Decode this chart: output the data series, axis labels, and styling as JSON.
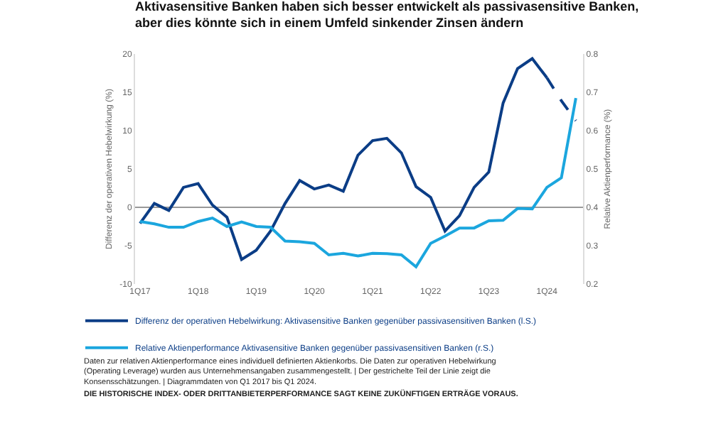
{
  "chart_data": {
    "type": "line",
    "title": "Aktivasensitive Banken haben sich besser entwickelt als passivasensitive Banken, aber dies könnte sich in einem Umfeld sinkender Zinsen ändern",
    "ylabel": "Differenz der operativen Hebelwirkung (%)",
    "y2label": "Relative Aktienperformance (%)",
    "series": [
      {
        "name": "Differenz der operativen Hebelwirkung: Aktivasensitive Banken gegenüber passivasensitiven Banken (l.S.)",
        "color": "#0b3d86",
        "line_style": "solid",
        "x": [
          "2017-01",
          "2017-04",
          "2017-07",
          "2017-10",
          "2018-01",
          "2018-04",
          "2018-07",
          "2018-10",
          "2019-01",
          "2019-04",
          "2019-07",
          "2019-10",
          "2020-01",
          "2020-04",
          "2020-07",
          "2020-10",
          "2021-01",
          "2021-04",
          "2021-07",
          "2021-10",
          "2022-01",
          "2022-04",
          "2022-07",
          "2022-10",
          "2023-01",
          "2023-04",
          "2023-07",
          "2023-10",
          "2024-01"
        ],
        "values": [
          -2.1,
          0.5,
          -0.4,
          2.6,
          3.1,
          0.3,
          -1.3,
          -6.8,
          -5.6,
          -3.1,
          0.5,
          3.5,
          2.4,
          2.9,
          2.1,
          6.8,
          8.7,
          9.0,
          7.1,
          2.7,
          1.3,
          -3.1,
          -1.1,
          2.6,
          4.6,
          13.6,
          18.1,
          19.4,
          16.9
        ]
      },
      {
        "color": "#0b3d86",
        "line_style": "dashed",
        "x": [
          "2024-01",
          "2024-04",
          "2024-07"
        ],
        "values": [
          16.9,
          13.9,
          11.3
        ]
      },
      {
        "name": "Relative Aktienperformance Aktivasensitive Banken gegenüber passivasensitiven Banken (r.S.)",
        "color": "#1ba6de",
        "line_style": "solid",
        "axis": "y2",
        "x": [
          "2017-01",
          "2017-04",
          "2017-07",
          "2017-10",
          "2018-01",
          "2018-04",
          "2018-07",
          "2018-10",
          "2019-01",
          "2019-04",
          "2019-07",
          "2019-10",
          "2020-01",
          "2020-04",
          "2020-07",
          "2020-10",
          "2021-01",
          "2021-04",
          "2021-07",
          "2021-10",
          "2022-01",
          "2022-04",
          "2022-07",
          "2022-10",
          "2023-01",
          "2023-04",
          "2023-07",
          "2023-10",
          "2024-01",
          "2024-04",
          "2024-07"
        ],
        "values": [
          0.363,
          0.357,
          0.348,
          0.348,
          0.363,
          0.372,
          0.35,
          0.362,
          0.35,
          0.348,
          0.312,
          0.31,
          0.306,
          0.276,
          0.28,
          0.273,
          0.28,
          0.279,
          0.276,
          0.245,
          0.306,
          0.325,
          0.346,
          0.346,
          0.365,
          0.366,
          0.397,
          0.396,
          0.452,
          0.477,
          0.685
        ]
      }
    ],
    "xlim": [
      "2016-12-01",
      "2024-08-15"
    ],
    "xticks": [
      {
        "value": "2017-01",
        "label": "1Q17"
      },
      {
        "value": "2018-01",
        "label": "1Q18"
      },
      {
        "value": "2019-01",
        "label": "1Q19"
      },
      {
        "value": "2020-01",
        "label": "1Q20"
      },
      {
        "value": "2021-01",
        "label": "1Q21"
      },
      {
        "value": "2022-01",
        "label": "1Q22"
      },
      {
        "value": "2023-01",
        "label": "1Q23"
      },
      {
        "value": "2024-01",
        "label": "1Q24"
      }
    ],
    "ylim": [
      -10,
      20
    ],
    "yticks": [
      -10,
      -5,
      0,
      5,
      10,
      15,
      20
    ],
    "y2lim": [
      0.2,
      0.8
    ],
    "y2ticks": [
      0.2,
      0.3,
      0.4,
      0.5,
      0.6,
      0.7,
      0.8
    ],
    "ref_lines": [
      {
        "axis": "y",
        "value": 0,
        "color": "#999999"
      }
    ],
    "grid": false,
    "legend": "bottom",
    "marker": "none",
    "annotations": [
      "Daten zur relativen Aktienperformance eines individuell definierten Aktienkorbs. Die Daten zur operativen Hebelwirkung (Operating Leverage) wurden aus Unternehmensangaben zusammengestellt. | Der gestrichelte Teil der Linie zeigt die Konsensschätzungen. | Diagrammdaten von Q1 2017 bis Q1 2024.",
      "DIE HISTORISCHE INDEX- ODER DRITTANBIETERPERFORMANCE SAGT KEINE ZUKÜNFTIGEN ERTRÄGE VORAUS."
    ]
  }
}
